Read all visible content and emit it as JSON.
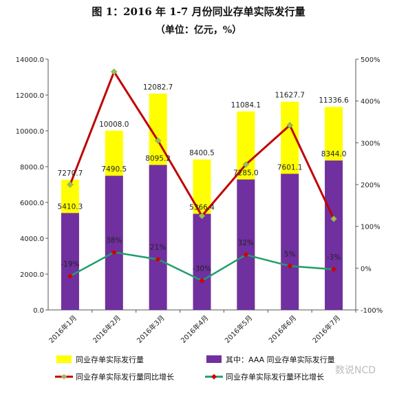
{
  "title": "图 1：2016 年 1-7 月份同业存单实际发行量",
  "subtitle": "（单位：亿元，%）",
  "watermark": "数说NCD",
  "colors": {
    "total_bar": "#ffff00",
    "aaa_bar": "#7030a0",
    "yoy_line": "#c00000",
    "yoy_marker": "#9bbb59",
    "mom_line": "#1f9e6a",
    "mom_marker": "#d00000"
  },
  "chart_data": {
    "type": "bar",
    "categories": [
      "2016年1月",
      "2016年2月",
      "2016年3月",
      "2016年4月",
      "2016年5月",
      "2016年6月",
      "2016年7月"
    ],
    "series": [
      {
        "name": "同业存单实际发行量",
        "axis": "left",
        "values": [
          7270.7,
          10008.0,
          12082.7,
          8400.5,
          11084.1,
          11627.7,
          11336.6
        ],
        "labels": [
          "7270.7",
          "10008.0",
          "12082.7",
          "8400.5",
          "11084.1",
          "11627.7",
          "11336.6"
        ]
      },
      {
        "name": "其中：AAA 同业存单实际发行量",
        "axis": "left",
        "values": [
          5410.3,
          7490.5,
          8095.2,
          5366.4,
          7285.0,
          7601.1,
          8344.0
        ],
        "labels": [
          "5410.3",
          "7490.5",
          "8095.2",
          "5366.4",
          "7285.0",
          "7601.1",
          "8344.0"
        ]
      },
      {
        "name": "同业存单实际发行量同比增长",
        "type": "line",
        "axis": "right",
        "values": [
          200,
          470,
          305,
          125,
          248,
          342,
          118
        ]
      },
      {
        "name": "同业存单实际发行量环比增长",
        "type": "line",
        "axis": "right",
        "values": [
          -19,
          38,
          21,
          -30,
          32,
          5,
          -3
        ],
        "labels": [
          "-19%",
          "38%",
          "21%",
          "-30%",
          "32%",
          "5%",
          "-3%"
        ]
      }
    ],
    "left_axis": {
      "ylim": [
        0,
        14000
      ],
      "ticks": [
        "0.0",
        "2000.0",
        "4000.0",
        "6000.0",
        "8000.0",
        "10000.0",
        "12000.0",
        "14000.0"
      ]
    },
    "right_axis": {
      "ylim": [
        -100,
        500
      ],
      "ticks": [
        "-100%",
        "0%",
        "100%",
        "200%",
        "300%",
        "400%",
        "500%"
      ]
    },
    "grid": false,
    "legend_position": "bottom"
  }
}
